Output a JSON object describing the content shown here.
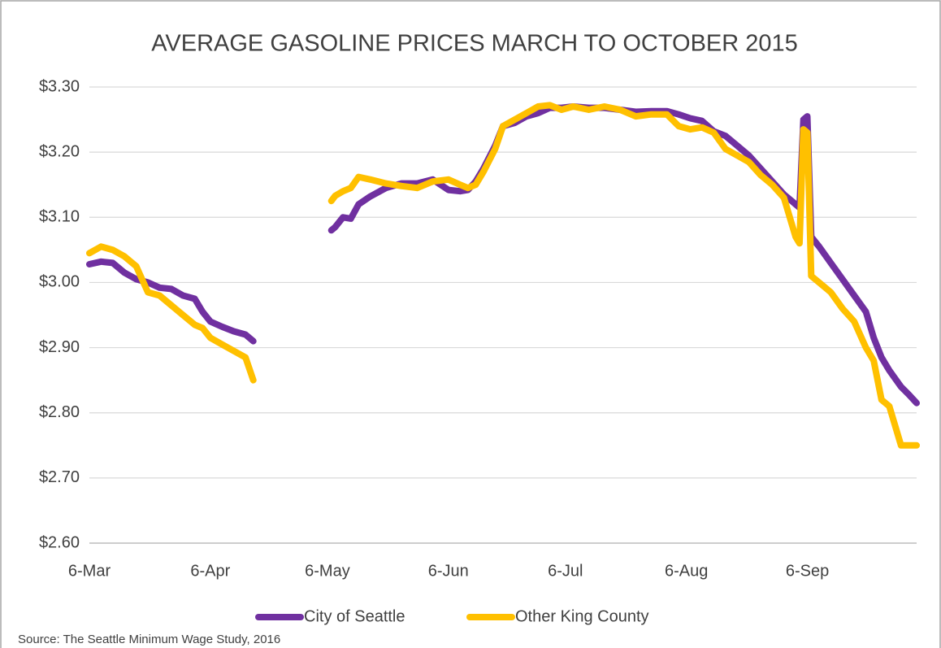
{
  "chart_data": {
    "type": "line",
    "title": "AVERAGE GASOLINE PRICES MARCH TO OCTOBER 2015",
    "source": "Source: The Seattle Minimum Wage Study, 2016",
    "x": [
      0,
      3,
      6,
      9,
      12,
      15,
      18,
      21,
      24,
      27,
      29,
      31,
      34,
      37,
      40,
      42,
      50,
      62,
      63,
      65,
      67,
      69,
      72,
      76,
      80,
      84,
      88,
      92,
      95,
      97,
      99,
      101,
      104,
      106,
      109,
      112,
      115,
      118,
      121,
      124,
      128,
      132,
      136,
      140,
      144,
      148,
      151,
      154,
      157,
      160,
      163,
      166,
      169,
      172,
      175,
      178,
      180,
      181,
      182,
      183,
      184,
      185,
      187,
      190,
      193,
      196,
      199,
      201,
      203,
      205,
      208,
      210,
      212
    ],
    "xlim": [
      0,
      212
    ],
    "xticks": [
      {
        "value": 0,
        "label": "6-Mar"
      },
      {
        "value": 31,
        "label": "6-Apr"
      },
      {
        "value": 61,
        "label": "6-May"
      },
      {
        "value": 92,
        "label": "6-Jun"
      },
      {
        "value": 122,
        "label": "6-Jul"
      },
      {
        "value": 153,
        "label": "6-Aug"
      },
      {
        "value": 184,
        "label": "6-Sep"
      }
    ],
    "ylim": [
      2.6,
      3.3
    ],
    "yticks": [
      {
        "value": 2.6,
        "label": "$2.60"
      },
      {
        "value": 2.7,
        "label": "$2.70"
      },
      {
        "value": 2.8,
        "label": "$2.80"
      },
      {
        "value": 2.9,
        "label": "$2.90"
      },
      {
        "value": 3.0,
        "label": "$3.00"
      },
      {
        "value": 3.1,
        "label": "$3.10"
      },
      {
        "value": 3.2,
        "label": "$3.20"
      },
      {
        "value": 3.3,
        "label": "$3.30"
      }
    ],
    "grid": true,
    "legend": "bottom",
    "series": [
      {
        "name": "City of Seattle",
        "color": "#7030a0",
        "values": [
          3.028,
          3.032,
          3.03,
          3.015,
          3.005,
          3.0,
          2.992,
          2.99,
          2.98,
          2.975,
          2.955,
          2.94,
          2.932,
          2.925,
          2.92,
          2.91,
          null,
          3.08,
          3.085,
          3.1,
          3.098,
          3.12,
          3.132,
          3.145,
          3.152,
          3.152,
          3.158,
          3.142,
          3.14,
          3.142,
          3.155,
          3.175,
          3.21,
          3.24,
          3.245,
          3.255,
          3.26,
          3.268,
          3.268,
          3.27,
          3.268,
          3.268,
          3.265,
          3.262,
          3.263,
          3.263,
          3.258,
          3.252,
          3.248,
          3.232,
          3.225,
          3.21,
          3.195,
          3.175,
          3.155,
          3.135,
          3.125,
          3.12,
          3.115,
          3.25,
          3.255,
          3.07,
          3.055,
          3.03,
          3.005,
          2.98,
          2.955,
          2.915,
          2.885,
          2.865,
          2.84,
          2.828,
          2.815
        ]
      },
      {
        "name": "Other King County",
        "color": "#ffc000",
        "values": [
          3.045,
          3.055,
          3.05,
          3.04,
          3.025,
          2.985,
          2.98,
          2.965,
          2.95,
          2.935,
          2.93,
          2.915,
          2.905,
          2.895,
          2.885,
          2.85,
          null,
          3.125,
          3.133,
          3.14,
          3.145,
          3.162,
          3.158,
          3.152,
          3.148,
          3.145,
          3.155,
          3.158,
          3.15,
          3.145,
          3.15,
          3.17,
          3.205,
          3.24,
          3.25,
          3.26,
          3.27,
          3.272,
          3.265,
          3.27,
          3.265,
          3.27,
          3.265,
          3.255,
          3.258,
          3.258,
          3.24,
          3.235,
          3.238,
          3.23,
          3.205,
          3.195,
          3.185,
          3.165,
          3.15,
          3.13,
          3.09,
          3.07,
          3.06,
          3.235,
          3.23,
          3.01,
          3.0,
          2.985,
          2.96,
          2.94,
          2.9,
          2.88,
          2.82,
          2.81,
          2.75,
          2.75,
          2.75
        ]
      }
    ]
  }
}
